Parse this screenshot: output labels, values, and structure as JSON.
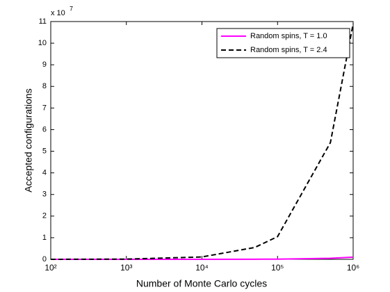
{
  "chart_data": {
    "type": "line",
    "xlabel": "Number of Monte Carlo cycles",
    "ylabel": "Accepted configurations",
    "y_multiplier": {
      "base": "x 10",
      "exponent": "7"
    },
    "xscale": "log",
    "x": [
      100,
      1000,
      10000,
      50000,
      100000,
      500000,
      1000000
    ],
    "series": [
      {
        "name": "Random spins, T = 1.0",
        "color": "#ff00ff",
        "dash": "solid",
        "values": [
          0,
          0.0001,
          0.001,
          0.005,
          0.01,
          0.05,
          0.1
        ]
      },
      {
        "name": "Random spins, T = 2.4",
        "color": "#000000",
        "dash": "dashed",
        "values": [
          0,
          0.01,
          0.11,
          0.55,
          1.05,
          5.4,
          10.9
        ]
      }
    ],
    "xlim": [
      100,
      1000000
    ],
    "xticks": [
      {
        "value": 100,
        "label": "10²"
      },
      {
        "value": 1000,
        "label": "10³"
      },
      {
        "value": 10000,
        "label": "10⁴"
      },
      {
        "value": 100000,
        "label": "10⁵"
      },
      {
        "value": 1000000,
        "label": "10⁶"
      }
    ],
    "ylim": [
      0,
      11
    ],
    "yticks": [
      0,
      1,
      2,
      3,
      4,
      5,
      6,
      7,
      8,
      9,
      10,
      11
    ],
    "grid": false,
    "legend": "top-right"
  }
}
